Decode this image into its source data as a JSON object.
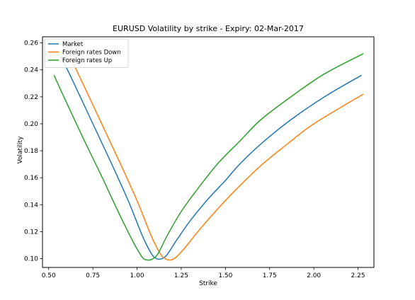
{
  "chart_data": {
    "type": "line",
    "title": "EURUSD  Volatility by strike - Expiry: 02-Mar-2017",
    "xlabel": "Strike",
    "ylabel": "Volatility",
    "xlim": [
      0.465,
      2.34
    ],
    "ylim": [
      0.0935,
      0.2645
    ],
    "xticks": [
      0.5,
      0.75,
      1.0,
      1.25,
      1.5,
      1.75,
      2.0,
      2.25
    ],
    "xtick_labels": [
      "0.50",
      "0.75",
      "1.00",
      "1.25",
      "1.50",
      "1.75",
      "2.00",
      "2.25"
    ],
    "yticks": [
      0.1,
      0.12,
      0.14,
      0.16,
      0.18,
      0.2,
      0.22,
      0.24,
      0.26
    ],
    "ytick_labels": [
      "0.10",
      "0.12",
      "0.14",
      "0.16",
      "0.18",
      "0.20",
      "0.22",
      "0.24",
      "0.26"
    ],
    "grid": false,
    "legend_position": "top-left",
    "series": [
      {
        "name": "Market",
        "color": "#1f77b4",
        "x": [
          0.57,
          0.65,
          0.75,
          0.85,
          0.95,
          1.03,
          1.08,
          1.11,
          1.14,
          1.17,
          1.22,
          1.3,
          1.4,
          1.5,
          1.58,
          1.7,
          1.87,
          2.06,
          2.27
        ],
        "y": [
          0.25,
          0.228,
          0.2,
          0.172,
          0.143,
          0.117,
          0.104,
          0.1,
          0.1,
          0.103,
          0.113,
          0.128,
          0.144,
          0.158,
          0.17,
          0.185,
          0.203,
          0.22,
          0.236
        ]
      },
      {
        "name": "Foreign rates Down",
        "color": "#ff7f0e",
        "x": [
          0.62,
          0.7,
          0.8,
          0.9,
          1.0,
          1.08,
          1.13,
          1.16,
          1.19,
          1.22,
          1.27,
          1.35,
          1.45,
          1.55,
          1.7,
          1.85,
          2.0,
          2.28
        ],
        "y": [
          0.25,
          0.228,
          0.2,
          0.172,
          0.143,
          0.117,
          0.104,
          0.1,
          0.099,
          0.101,
          0.108,
          0.121,
          0.136,
          0.15,
          0.169,
          0.185,
          0.2,
          0.222
        ]
      },
      {
        "name": "Foreign rates Up",
        "color": "#2ca02c",
        "x": [
          0.53,
          0.6,
          0.7,
          0.8,
          0.9,
          0.98,
          1.03,
          1.06,
          1.09,
          1.12,
          1.17,
          1.25,
          1.35,
          1.46,
          1.58,
          1.7,
          1.87,
          2.06,
          2.28
        ],
        "y": [
          0.236,
          0.216,
          0.188,
          0.161,
          0.133,
          0.112,
          0.101,
          0.099,
          0.1,
          0.104,
          0.117,
          0.135,
          0.153,
          0.171,
          0.187,
          0.203,
          0.22,
          0.237,
          0.252
        ]
      }
    ]
  }
}
